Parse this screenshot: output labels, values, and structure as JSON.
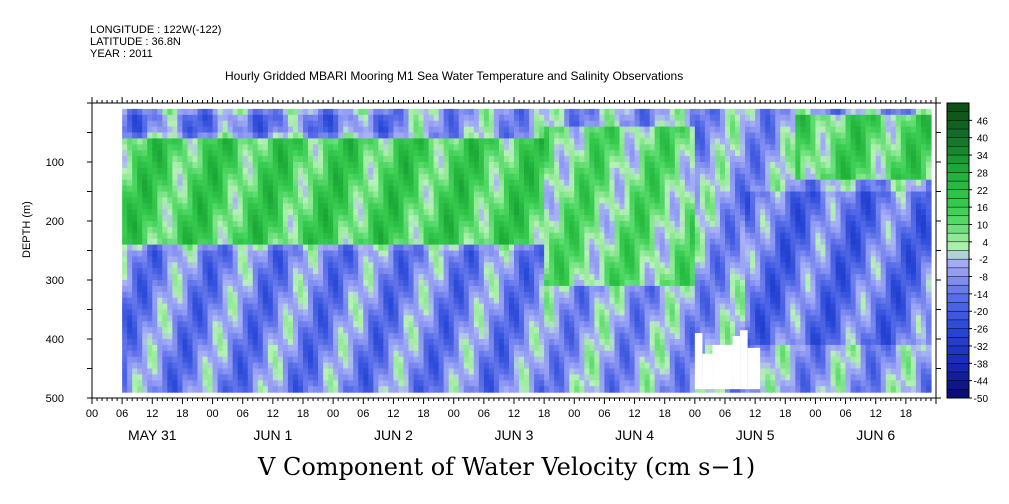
{
  "header": {
    "longitude": "LONGITUDE : 122W(-122)",
    "latitude": "LATITUDE : 36.8N",
    "year": "YEAR : 2011"
  },
  "title": "Hourly Gridded MBARI Mooring M1 Sea Water Temperature and Salinity Observations",
  "bottom_title": "V Component of Water Velocity (cm s−1)",
  "colors": {
    "strong_negative": "#0a0a6e",
    "negative": "#2848d8",
    "weak_negative": "#9ea8f4",
    "weak_positive": "#a6f0a6",
    "positive": "#28cc48",
    "strong_positive": "#0b4a14"
  },
  "chart_data": {
    "type": "heatmap",
    "title": "Hourly Gridded MBARI Mooring M1 Sea Water Temperature and Salinity Observations",
    "xlabel": "",
    "ylabel": "DEPTH (m)",
    "x_unit": "hours from May 31 00:00, 2011",
    "x_range": [
      0,
      168
    ],
    "data_x_range": [
      6,
      167
    ],
    "y_range": [
      500,
      0
    ],
    "data_y_range": [
      10,
      485
    ],
    "y_ticks": [
      100,
      200,
      300,
      400,
      500
    ],
    "x_hour_ticks": [
      "00",
      "06",
      "12",
      "18",
      "00",
      "06",
      "12",
      "18",
      "00",
      "06",
      "12",
      "18",
      "00",
      "06",
      "12",
      "18",
      "00",
      "06",
      "12",
      "18",
      "00",
      "06",
      "12",
      "18",
      "00",
      "06",
      "12",
      "18"
    ],
    "x_day_labels": [
      "MAY 31",
      "JUN  1",
      "JUN  2",
      "JUN  3",
      "JUN  4",
      "JUN  5",
      "JUN  6"
    ],
    "colorbar": {
      "labels": [
        46,
        40,
        34,
        28,
        22,
        16,
        10,
        4,
        -2,
        -8,
        -14,
        -20,
        -26,
        -32,
        -38,
        -44,
        -50
      ],
      "min": -50,
      "max": 52,
      "step": 3
    },
    "masked_regions_note": "white gaps near bottom around JUN 1 02h and JUN 5 00-12h",
    "masked_regions": [
      {
        "x0": 1.5,
        "x1": 3.5,
        "y0": 460,
        "y1": 485
      },
      {
        "x0": 120,
        "x1": 121.5,
        "y0": 390,
        "y1": 485
      },
      {
        "x0": 121.5,
        "x1": 123.5,
        "y0": 425,
        "y1": 485
      },
      {
        "x0": 123.5,
        "x1": 127.5,
        "y0": 410,
        "y1": 485
      },
      {
        "x0": 127.5,
        "x1": 129,
        "y0": 395,
        "y1": 485
      },
      {
        "x0": 129,
        "x1": 130.5,
        "y0": 385,
        "y1": 485
      },
      {
        "x0": 130.5,
        "x1": 133,
        "y0": 415,
        "y1": 485
      }
    ],
    "dominant_pattern": [
      {
        "depth_range": [
          20,
          40
        ],
        "x_range": [
          6,
          60
        ],
        "value": -12
      },
      {
        "depth_range": [
          60,
          230
        ],
        "x_range": [
          6,
          90
        ],
        "value": 14
      },
      {
        "depth_range": [
          250,
          485
        ],
        "x_range": [
          6,
          90
        ],
        "value": -10
      },
      {
        "depth_range": [
          40,
          300
        ],
        "x_range": [
          90,
          120
        ],
        "value": 8
      },
      {
        "depth_range": [
          150,
          400
        ],
        "x_range": [
          130,
          167
        ],
        "value": -14
      },
      {
        "depth_range": [
          20,
          120
        ],
        "x_range": [
          140,
          167
        ],
        "value": 12
      }
    ]
  }
}
